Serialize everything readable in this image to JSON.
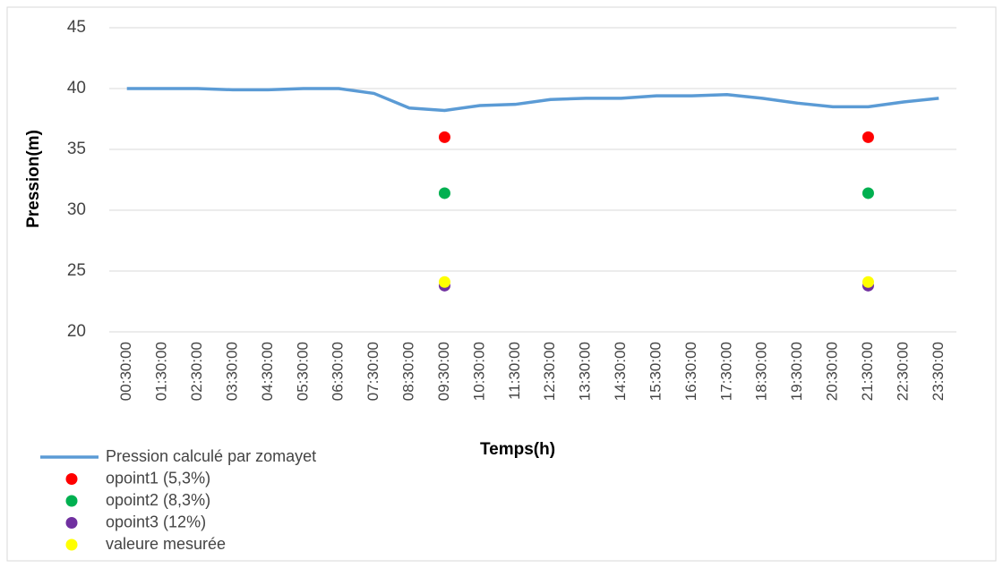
{
  "chart_data": {
    "type": "line",
    "xlabel": "Temps(h)",
    "ylabel": "Pression(m)",
    "categories": [
      "00:30:00",
      "01:30:00",
      "02:30:00",
      "03:30:00",
      "04:30:00",
      "05:30:00",
      "06:30:00",
      "07:30:00",
      "08:30:00",
      "09:30:00",
      "10:30:00",
      "11:30:00",
      "12:30:00",
      "13:30:00",
      "14:30:00",
      "15:30:00",
      "16:30:00",
      "17:30:00",
      "18:30:00",
      "19:30:00",
      "20:30:00",
      "21:30:00",
      "22:30:00",
      "23:30:00"
    ],
    "series": [
      {
        "name": "Pression calculé par zomayet",
        "type": "line",
        "color": "#5b9bd5",
        "values": [
          40,
          40,
          40,
          39.9,
          39.9,
          40,
          40,
          39.6,
          38.4,
          38.2,
          38.6,
          38.7,
          39.1,
          39.2,
          39.2,
          39.4,
          39.4,
          39.5,
          39.2,
          38.8,
          38.5,
          38.5,
          38.9,
          39.2
        ]
      },
      {
        "name": "opoint1  (5,3%)",
        "type": "scatter",
        "color": "#ff0000",
        "values": [
          null,
          null,
          null,
          null,
          null,
          null,
          null,
          null,
          null,
          36,
          null,
          null,
          null,
          null,
          null,
          null,
          null,
          null,
          null,
          null,
          null,
          36,
          null,
          null
        ]
      },
      {
        "name": "opoint2 (8,3%)",
        "type": "scatter",
        "color": "#00b050",
        "values": [
          null,
          null,
          null,
          null,
          null,
          null,
          null,
          null,
          null,
          31.4,
          null,
          null,
          null,
          null,
          null,
          null,
          null,
          null,
          null,
          null,
          null,
          31.4,
          null,
          null
        ]
      },
      {
        "name": "opoint3 (12%)",
        "type": "scatter",
        "color": "#7030a0",
        "values": [
          null,
          null,
          null,
          null,
          null,
          null,
          null,
          null,
          null,
          23.8,
          null,
          null,
          null,
          null,
          null,
          null,
          null,
          null,
          null,
          null,
          null,
          23.8,
          null,
          null
        ]
      },
      {
        "name": "valeure mesurée",
        "type": "scatter",
        "color": "#ffff00",
        "values": [
          null,
          null,
          null,
          null,
          null,
          null,
          null,
          null,
          null,
          24.1,
          null,
          null,
          null,
          null,
          null,
          null,
          null,
          null,
          null,
          null,
          null,
          24.1,
          null,
          null
        ]
      }
    ],
    "ylim": [
      20,
      45
    ],
    "yticks": [
      20,
      25,
      30,
      35,
      40,
      45
    ],
    "grid": true
  }
}
